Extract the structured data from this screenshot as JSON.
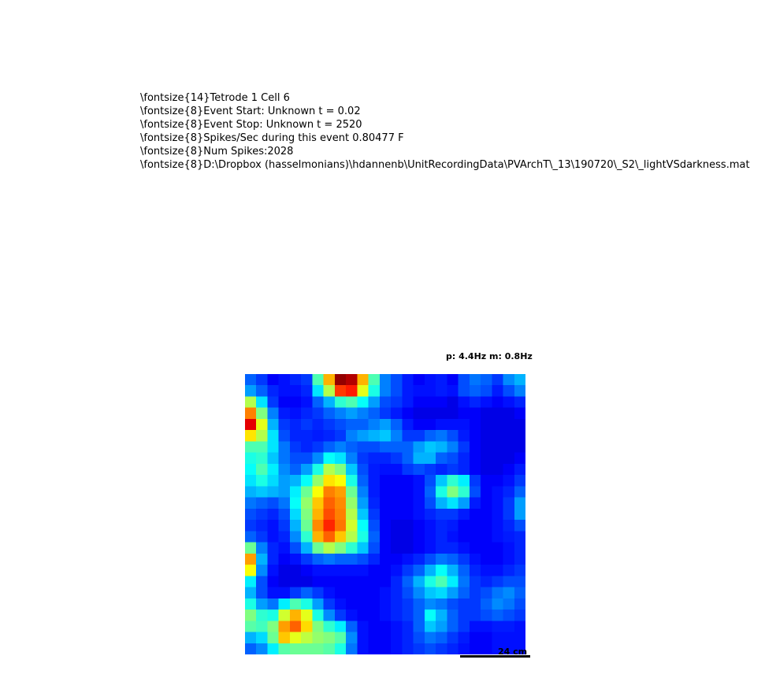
{
  "header": {
    "lines": [
      "\\fontsize{14}Tetrode 1 Cell 6",
      "\\fontsize{8}Event Start: Unknown t = 0.02",
      "\\fontsize{8}Event Stop: Unknown t = 2520",
      "\\fontsize{8}Spikes/Sec during this event 0.80477 F",
      "\\fontsize{8}Num Spikes:2028",
      "\\fontsize{8}D:\\Dropbox (hasselmonians)\\hdannenb\\UnitRecordingData\\PVArchT\\_13\\190720\\_S2\\_lightVSdarkness.mat"
    ]
  },
  "rate_map": {
    "stats_label": "p: 4.4Hz m: 0.8Hz",
    "scale_bar_label": "24 cm"
  },
  "chart_data": {
    "type": "heatmap",
    "colormap": "jet",
    "value_range": [
      0,
      1
    ],
    "rows": 25,
    "cols": 25,
    "title": "",
    "xlabel": "",
    "ylabel": "",
    "values": [
      [
        0.22,
        0.18,
        0.12,
        0.14,
        0.16,
        0.18,
        0.45,
        0.7,
        0.98,
        0.95,
        0.7,
        0.45,
        0.25,
        0.2,
        0.15,
        0.12,
        0.14,
        0.15,
        0.12,
        0.2,
        0.24,
        0.22,
        0.18,
        0.26,
        0.3
      ],
      [
        0.28,
        0.22,
        0.16,
        0.14,
        0.14,
        0.16,
        0.35,
        0.55,
        0.82,
        0.85,
        0.6,
        0.4,
        0.25,
        0.2,
        0.15,
        0.14,
        0.14,
        0.15,
        0.14,
        0.2,
        0.22,
        0.2,
        0.15,
        0.2,
        0.25
      ],
      [
        0.55,
        0.35,
        0.18,
        0.12,
        0.12,
        0.14,
        0.22,
        0.3,
        0.42,
        0.45,
        0.38,
        0.28,
        0.2,
        0.18,
        0.15,
        0.12,
        0.12,
        0.12,
        0.1,
        0.14,
        0.16,
        0.14,
        0.12,
        0.14,
        0.16
      ],
      [
        0.75,
        0.5,
        0.25,
        0.15,
        0.14,
        0.16,
        0.18,
        0.22,
        0.25,
        0.28,
        0.25,
        0.22,
        0.18,
        0.15,
        0.12,
        0.1,
        0.1,
        0.1,
        0.1,
        0.12,
        0.12,
        0.1,
        0.1,
        0.1,
        0.12
      ],
      [
        0.9,
        0.6,
        0.3,
        0.18,
        0.16,
        0.18,
        0.16,
        0.18,
        0.2,
        0.22,
        0.22,
        0.25,
        0.28,
        0.22,
        0.15,
        0.12,
        0.12,
        0.14,
        0.14,
        0.14,
        0.12,
        0.1,
        0.1,
        0.1,
        0.1
      ],
      [
        0.65,
        0.55,
        0.35,
        0.2,
        0.16,
        0.16,
        0.15,
        0.16,
        0.18,
        0.25,
        0.28,
        0.3,
        0.32,
        0.25,
        0.18,
        0.18,
        0.22,
        0.24,
        0.2,
        0.15,
        0.12,
        0.1,
        0.1,
        0.1,
        0.1
      ],
      [
        0.45,
        0.45,
        0.35,
        0.24,
        0.18,
        0.16,
        0.18,
        0.22,
        0.25,
        0.22,
        0.2,
        0.2,
        0.22,
        0.22,
        0.22,
        0.28,
        0.32,
        0.3,
        0.25,
        0.18,
        0.12,
        0.1,
        0.1,
        0.1,
        0.1
      ],
      [
        0.4,
        0.42,
        0.32,
        0.24,
        0.2,
        0.2,
        0.26,
        0.38,
        0.35,
        0.25,
        0.18,
        0.16,
        0.16,
        0.18,
        0.22,
        0.3,
        0.3,
        0.22,
        0.2,
        0.16,
        0.12,
        0.1,
        0.1,
        0.1,
        0.12
      ],
      [
        0.38,
        0.45,
        0.36,
        0.26,
        0.22,
        0.28,
        0.4,
        0.55,
        0.5,
        0.32,
        0.2,
        0.15,
        0.14,
        0.14,
        0.18,
        0.2,
        0.18,
        0.16,
        0.18,
        0.16,
        0.12,
        0.1,
        0.1,
        0.12,
        0.15
      ],
      [
        0.35,
        0.4,
        0.34,
        0.28,
        0.3,
        0.38,
        0.52,
        0.65,
        0.62,
        0.4,
        0.22,
        0.15,
        0.12,
        0.12,
        0.12,
        0.14,
        0.2,
        0.32,
        0.42,
        0.36,
        0.18,
        0.12,
        0.12,
        0.14,
        0.18
      ],
      [
        0.3,
        0.32,
        0.3,
        0.28,
        0.36,
        0.48,
        0.62,
        0.75,
        0.72,
        0.48,
        0.25,
        0.15,
        0.12,
        0.12,
        0.12,
        0.14,
        0.22,
        0.4,
        0.5,
        0.42,
        0.2,
        0.12,
        0.14,
        0.16,
        0.22
      ],
      [
        0.24,
        0.22,
        0.2,
        0.24,
        0.38,
        0.52,
        0.68,
        0.78,
        0.74,
        0.52,
        0.28,
        0.16,
        0.12,
        0.12,
        0.12,
        0.14,
        0.2,
        0.3,
        0.35,
        0.28,
        0.15,
        0.12,
        0.14,
        0.18,
        0.28
      ],
      [
        0.2,
        0.18,
        0.16,
        0.2,
        0.34,
        0.5,
        0.7,
        0.8,
        0.75,
        0.55,
        0.32,
        0.18,
        0.12,
        0.12,
        0.12,
        0.14,
        0.16,
        0.18,
        0.18,
        0.15,
        0.12,
        0.12,
        0.14,
        0.18,
        0.28
      ],
      [
        0.18,
        0.16,
        0.14,
        0.18,
        0.3,
        0.48,
        0.74,
        0.84,
        0.76,
        0.58,
        0.38,
        0.2,
        0.12,
        0.1,
        0.1,
        0.12,
        0.14,
        0.16,
        0.15,
        0.12,
        0.12,
        0.12,
        0.14,
        0.16,
        0.2
      ],
      [
        0.22,
        0.18,
        0.14,
        0.16,
        0.26,
        0.42,
        0.7,
        0.78,
        0.68,
        0.55,
        0.4,
        0.22,
        0.12,
        0.1,
        0.1,
        0.12,
        0.14,
        0.16,
        0.14,
        0.12,
        0.12,
        0.12,
        0.14,
        0.15,
        0.16
      ],
      [
        0.48,
        0.25,
        0.16,
        0.14,
        0.2,
        0.3,
        0.48,
        0.55,
        0.5,
        0.42,
        0.32,
        0.2,
        0.12,
        0.1,
        0.1,
        0.12,
        0.14,
        0.16,
        0.16,
        0.14,
        0.12,
        0.12,
        0.12,
        0.14,
        0.16
      ],
      [
        0.72,
        0.3,
        0.16,
        0.12,
        0.14,
        0.18,
        0.22,
        0.24,
        0.22,
        0.22,
        0.2,
        0.16,
        0.12,
        0.12,
        0.14,
        0.16,
        0.2,
        0.24,
        0.22,
        0.18,
        0.14,
        0.12,
        0.12,
        0.14,
        0.16
      ],
      [
        0.62,
        0.26,
        0.14,
        0.1,
        0.1,
        0.12,
        0.14,
        0.14,
        0.14,
        0.14,
        0.14,
        0.12,
        0.12,
        0.14,
        0.18,
        0.22,
        0.3,
        0.38,
        0.3,
        0.22,
        0.16,
        0.14,
        0.14,
        0.16,
        0.18
      ],
      [
        0.36,
        0.2,
        0.12,
        0.1,
        0.1,
        0.1,
        0.12,
        0.12,
        0.12,
        0.12,
        0.12,
        0.12,
        0.12,
        0.16,
        0.22,
        0.3,
        0.4,
        0.45,
        0.36,
        0.24,
        0.18,
        0.16,
        0.18,
        0.2,
        0.2
      ],
      [
        0.3,
        0.2,
        0.14,
        0.14,
        0.18,
        0.22,
        0.18,
        0.14,
        0.12,
        0.12,
        0.12,
        0.12,
        0.14,
        0.16,
        0.2,
        0.26,
        0.32,
        0.34,
        0.28,
        0.22,
        0.18,
        0.2,
        0.24,
        0.26,
        0.22
      ],
      [
        0.4,
        0.28,
        0.24,
        0.36,
        0.45,
        0.4,
        0.28,
        0.18,
        0.14,
        0.12,
        0.12,
        0.12,
        0.14,
        0.16,
        0.18,
        0.22,
        0.26,
        0.24,
        0.2,
        0.18,
        0.18,
        0.22,
        0.26,
        0.24,
        0.2
      ],
      [
        0.5,
        0.42,
        0.4,
        0.58,
        0.7,
        0.6,
        0.4,
        0.26,
        0.18,
        0.14,
        0.12,
        0.12,
        0.14,
        0.16,
        0.18,
        0.22,
        0.38,
        0.3,
        0.22,
        0.18,
        0.18,
        0.2,
        0.22,
        0.2,
        0.18
      ],
      [
        0.46,
        0.44,
        0.5,
        0.72,
        0.78,
        0.66,
        0.5,
        0.42,
        0.36,
        0.22,
        0.14,
        0.12,
        0.12,
        0.14,
        0.16,
        0.22,
        0.32,
        0.28,
        0.22,
        0.18,
        0.14,
        0.14,
        0.15,
        0.15,
        0.14
      ],
      [
        0.3,
        0.34,
        0.48,
        0.68,
        0.6,
        0.56,
        0.52,
        0.5,
        0.46,
        0.26,
        0.14,
        0.12,
        0.12,
        0.14,
        0.16,
        0.2,
        0.24,
        0.22,
        0.18,
        0.15,
        0.12,
        0.12,
        0.14,
        0.14,
        0.14
      ],
      [
        0.22,
        0.26,
        0.36,
        0.46,
        0.48,
        0.48,
        0.48,
        0.46,
        0.4,
        0.24,
        0.14,
        0.12,
        0.12,
        0.14,
        0.16,
        0.18,
        0.2,
        0.18,
        0.16,
        0.14,
        0.12,
        0.12,
        0.14,
        0.14,
        0.14
      ]
    ]
  }
}
